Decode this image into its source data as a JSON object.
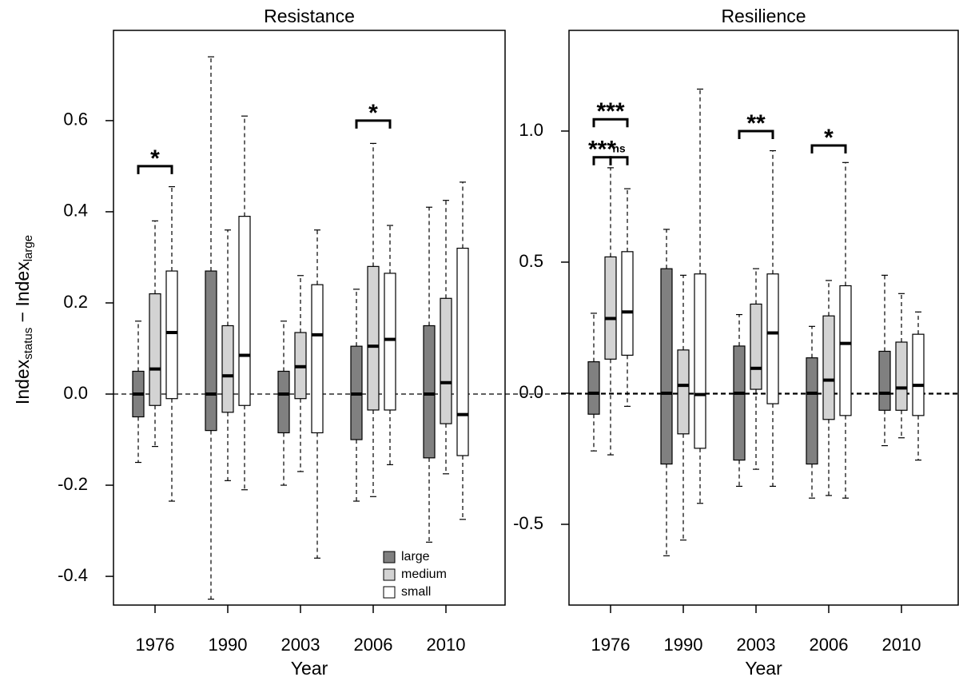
{
  "chart_data": [
    {
      "type": "box",
      "title": "Resistance",
      "x_label": "Year",
      "y_label": [
        "Index",
        "status",
        " − Index",
        "large"
      ],
      "categories": [
        "1976",
        "1990",
        "2003",
        "2006",
        "2010"
      ],
      "ylim": [
        -0.463,
        0.798
      ],
      "yticks": [
        -0.4,
        -0.2,
        {
          "value": 0,
          "label": "0.0"
        },
        0.2,
        0.4,
        0.6
      ],
      "hline": 0,
      "legend": "lower right",
      "series": [
        {
          "name": "large",
          "color": "#808080",
          "min": [
            -0.15,
            -0.45,
            -0.2,
            -0.235,
            -0.325
          ],
          "q1": [
            -0.05,
            -0.08,
            -0.085,
            -0.1,
            -0.14
          ],
          "median": [
            0,
            0,
            0,
            0,
            0
          ],
          "q3": [
            0.05,
            0.27,
            0.05,
            0.105,
            0.15
          ],
          "max": [
            0.16,
            0.74,
            0.16,
            0.23,
            0.41
          ]
        },
        {
          "name": "medium",
          "color": "#d3d3d3",
          "min": [
            -0.115,
            -0.19,
            -0.17,
            -0.225,
            -0.175
          ],
          "q1": [
            -0.025,
            -0.04,
            -0.01,
            -0.035,
            -0.065
          ],
          "median": [
            0.055,
            0.04,
            0.06,
            0.105,
            0.025
          ],
          "q3": [
            0.22,
            0.15,
            0.135,
            0.28,
            0.21
          ],
          "max": [
            0.38,
            0.36,
            0.26,
            0.55,
            0.425
          ]
        },
        {
          "name": "small",
          "color": "#ffffff",
          "min": [
            -0.235,
            -0.21,
            -0.36,
            -0.155,
            -0.275
          ],
          "q1": [
            -0.01,
            -0.025,
            -0.085,
            -0.035,
            -0.135
          ],
          "median": [
            0.135,
            0.085,
            0.13,
            0.12,
            -0.045
          ],
          "q3": [
            0.27,
            0.39,
            0.24,
            0.265,
            0.32
          ],
          "max": [
            0.455,
            0.61,
            0.36,
            0.37,
            0.465
          ]
        }
      ],
      "annotations": [
        {
          "category": 0,
          "from": 0,
          "to": 2,
          "y": 0.5,
          "label": "*"
        },
        {
          "category": 3,
          "from": 0,
          "to": 2,
          "y": 0.6,
          "label": "*"
        }
      ]
    },
    {
      "type": "box",
      "title": "Resilience",
      "x_label": "Year",
      "categories": [
        "1976",
        "1990",
        "2003",
        "2006",
        "2010"
      ],
      "ylim": [
        -0.808,
        1.384
      ],
      "yticks": [
        -0.5,
        {
          "value": 0,
          "label": "0.0"
        },
        0.5,
        {
          "value": 1,
          "label": "1.0"
        }
      ],
      "hline": 0,
      "series": [
        {
          "name": "large",
          "color": "#808080",
          "min": [
            -0.22,
            -0.62,
            -0.355,
            -0.4,
            -0.2
          ],
          "q1": [
            -0.08,
            -0.27,
            -0.255,
            -0.27,
            -0.065
          ],
          "median": [
            0,
            0,
            0,
            0,
            0
          ],
          "q3": [
            0.12,
            0.475,
            0.18,
            0.135,
            0.16
          ],
          "max": [
            0.305,
            0.625,
            0.3,
            0.255,
            0.45
          ]
        },
        {
          "name": "medium",
          "color": "#d3d3d3",
          "min": [
            -0.235,
            -0.56,
            -0.29,
            -0.39,
            -0.17
          ],
          "q1": [
            0.13,
            -0.155,
            0.015,
            -0.1,
            -0.065
          ],
          "median": [
            0.285,
            0.03,
            0.095,
            0.05,
            0.02
          ],
          "q3": [
            0.52,
            0.165,
            0.34,
            0.295,
            0.195
          ],
          "max": [
            0.86,
            0.45,
            0.475,
            0.43,
            0.38
          ]
        },
        {
          "name": "small",
          "color": "#ffffff",
          "min": [
            -0.05,
            -0.42,
            -0.355,
            -0.4,
            -0.255
          ],
          "q1": [
            0.145,
            -0.21,
            -0.04,
            -0.085,
            -0.085
          ],
          "median": [
            0.31,
            -0.005,
            0.23,
            0.19,
            0.03
          ],
          "q3": [
            0.54,
            0.455,
            0.455,
            0.41,
            0.225
          ],
          "max": [
            0.78,
            1.16,
            0.925,
            0.88,
            0.31
          ]
        }
      ],
      "annotations": [
        {
          "category": 0,
          "from": 0,
          "to": 2,
          "y": 1.045,
          "label": "***"
        },
        {
          "category": 0,
          "from": 0,
          "to": 1,
          "y": 0.9,
          "label": "***"
        },
        {
          "category": 0,
          "from": 1,
          "to": 2,
          "y": 0.9,
          "label": "ns"
        },
        {
          "category": 2,
          "from": 0,
          "to": 2,
          "y": 1.0,
          "label": "**"
        },
        {
          "category": 3,
          "from": 0,
          "to": 2,
          "y": 0.945,
          "label": "*"
        }
      ]
    }
  ]
}
